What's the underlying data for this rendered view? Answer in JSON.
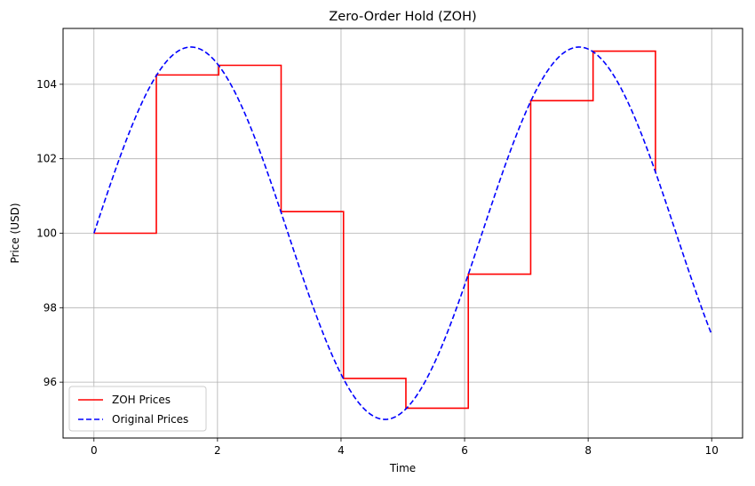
{
  "chart_data": {
    "type": "line",
    "title": "Zero-Order Hold (ZOH)",
    "xlabel": "Time",
    "ylabel": "Price (USD)",
    "xlim": [
      -0.5,
      10.5
    ],
    "ylim": [
      94.5,
      105.5
    ],
    "xticks": [
      0,
      2,
      4,
      6,
      8,
      10
    ],
    "yticks": [
      96,
      98,
      100,
      102,
      104
    ],
    "grid": true,
    "legend_position": "lower left",
    "series": [
      {
        "name": "ZOH Prices",
        "color": "#ff0000",
        "style": "solid",
        "drawstyle": "steps-post",
        "x": [
          0.0,
          1.01,
          2.02,
          3.03,
          4.04,
          5.05,
          6.06,
          7.07,
          8.08,
          9.09
        ],
        "y": [
          100.0,
          104.25,
          104.51,
          100.58,
          96.1,
          95.3,
          98.9,
          103.56,
          104.89,
          101.65
        ]
      },
      {
        "name": "Original Prices",
        "color": "#0000ff",
        "style": "dashed",
        "function": "100 + 5*sin(x)",
        "x_range": [
          0,
          10
        ]
      }
    ]
  }
}
